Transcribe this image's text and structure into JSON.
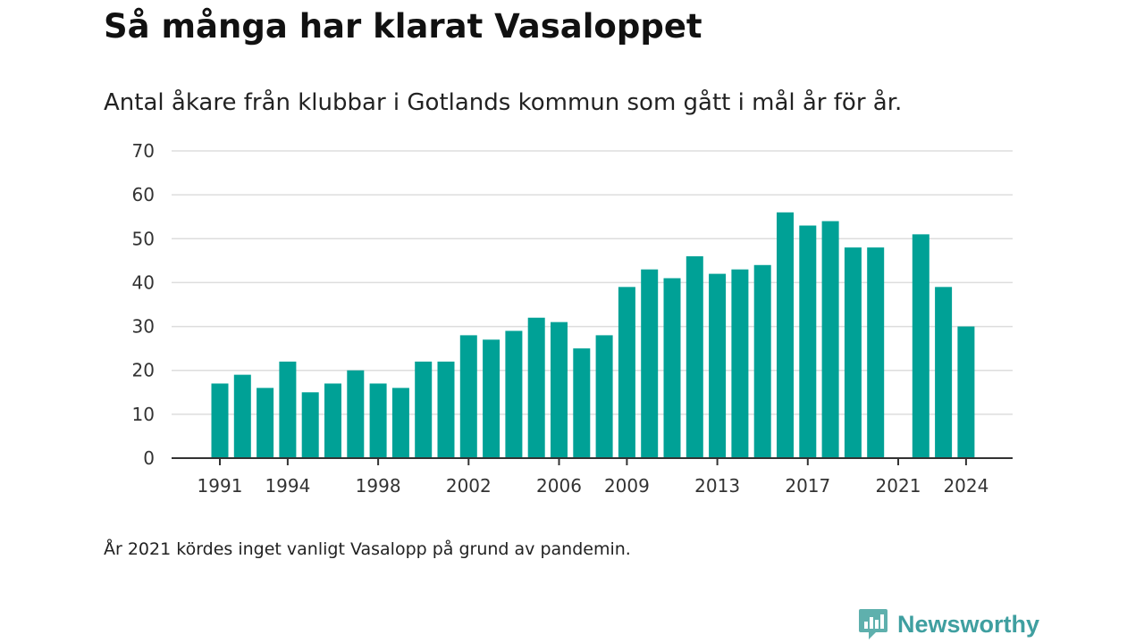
{
  "title": "Så många har klarat Vasaloppet",
  "subtitle": "Antal åkare från klubbar i Gotlands kommun som gått i mål år för år.",
  "note": "År 2021 kördes inget vanligt Vasalopp på grund av pandemin.",
  "brand": {
    "name": "Newsworthy",
    "icon": "newsworthy-logo-icon",
    "color": "#3f9fa0"
  },
  "chart_data": {
    "type": "bar",
    "categories": [
      "1991",
      "1992",
      "1993",
      "1994",
      "1995",
      "1996",
      "1997",
      "1998",
      "1999",
      "2000",
      "2001",
      "2002",
      "2003",
      "2004",
      "2005",
      "2006",
      "2007",
      "2008",
      "2009",
      "2010",
      "2011",
      "2012",
      "2013",
      "2014",
      "2015",
      "2016",
      "2017",
      "2018",
      "2019",
      "2020",
      "2021",
      "2022",
      "2023",
      "2024"
    ],
    "values": [
      17,
      19,
      16,
      22,
      15,
      17,
      20,
      17,
      16,
      22,
      22,
      28,
      27,
      29,
      32,
      31,
      25,
      28,
      39,
      43,
      41,
      46,
      42,
      43,
      44,
      56,
      53,
      54,
      48,
      48,
      null,
      51,
      39,
      30
    ],
    "x_tick_labels": [
      "1991",
      "1994",
      "1998",
      "2002",
      "2006",
      "2009",
      "2013",
      "2017",
      "2021",
      "2024"
    ],
    "y_ticks": [
      0,
      10,
      20,
      30,
      40,
      50,
      60,
      70
    ],
    "ylim": [
      0,
      70
    ],
    "grid": true,
    "bar_color": "#00a196"
  }
}
